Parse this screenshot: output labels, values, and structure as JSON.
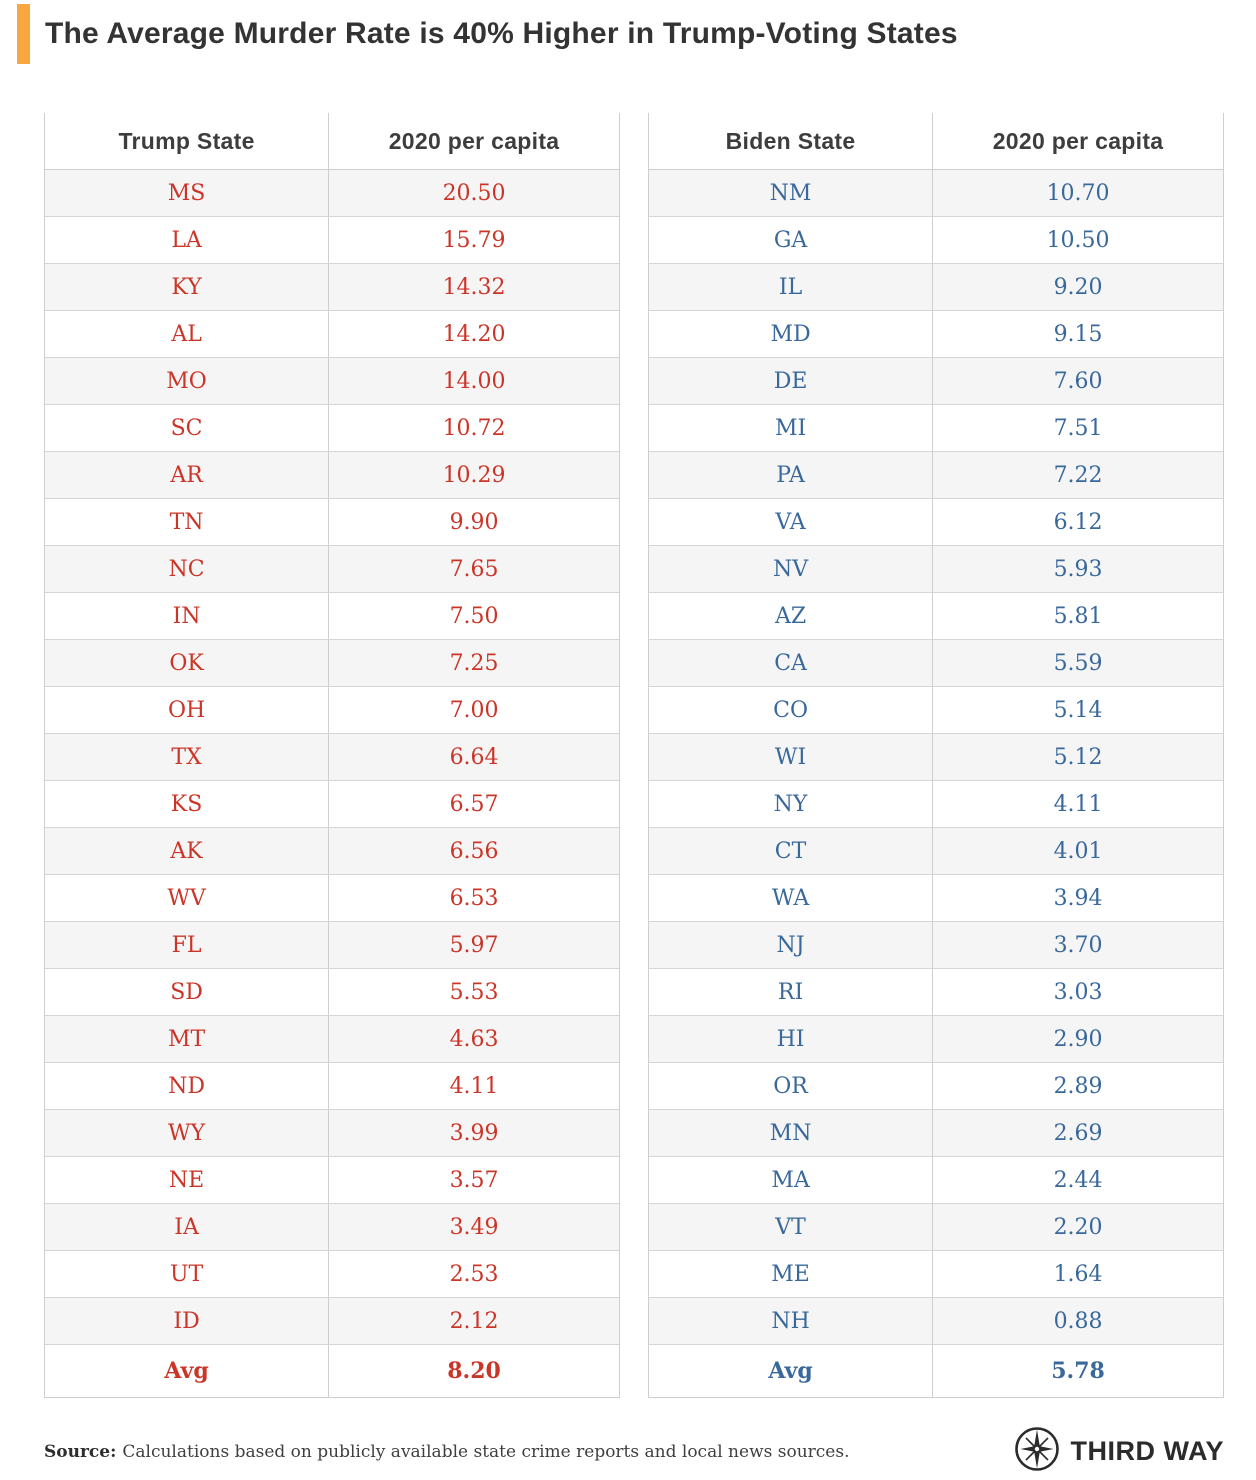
{
  "title": "The Average Murder Rate is 40% Higher in Trump-Voting States",
  "accent_color": "#F8A63F",
  "header_text_color": "#3d3d3d",
  "chart_data": {
    "type": "table",
    "title": "The Average Murder Rate is 40% Higher in Trump-Voting States",
    "tables": [
      {
        "name": "Trump States",
        "text_color": "#cb3528",
        "columns": [
          "Trump State",
          "2020 per capita"
        ],
        "rows": [
          [
            "MS",
            "20.50"
          ],
          [
            "LA",
            "15.79"
          ],
          [
            "KY",
            "14.32"
          ],
          [
            "AL",
            "14.20"
          ],
          [
            "MO",
            "14.00"
          ],
          [
            "SC",
            "10.72"
          ],
          [
            "AR",
            "10.29"
          ],
          [
            "TN",
            "9.90"
          ],
          [
            "NC",
            "7.65"
          ],
          [
            "IN",
            "7.50"
          ],
          [
            "OK",
            "7.25"
          ],
          [
            "OH",
            "7.00"
          ],
          [
            "TX",
            "6.64"
          ],
          [
            "KS",
            "6.57"
          ],
          [
            "AK",
            "6.56"
          ],
          [
            "WV",
            "6.53"
          ],
          [
            "FL",
            "5.97"
          ],
          [
            "SD",
            "5.53"
          ],
          [
            "MT",
            "4.63"
          ],
          [
            "ND",
            "4.11"
          ],
          [
            "WY",
            "3.99"
          ],
          [
            "NE",
            "3.57"
          ],
          [
            "IA",
            "3.49"
          ],
          [
            "UT",
            "2.53"
          ],
          [
            "ID",
            "2.12"
          ]
        ],
        "avg_label": "Avg",
        "avg_value": "8.20"
      },
      {
        "name": "Biden States",
        "text_color": "#39689a",
        "columns": [
          "Biden State",
          "2020 per capita"
        ],
        "rows": [
          [
            "NM",
            "10.70"
          ],
          [
            "GA",
            "10.50"
          ],
          [
            "IL",
            "9.20"
          ],
          [
            "MD",
            "9.15"
          ],
          [
            "DE",
            "7.60"
          ],
          [
            "MI",
            "7.51"
          ],
          [
            "PA",
            "7.22"
          ],
          [
            "VA",
            "6.12"
          ],
          [
            "NV",
            "5.93"
          ],
          [
            "AZ",
            "5.81"
          ],
          [
            "CA",
            "5.59"
          ],
          [
            "CO",
            "5.14"
          ],
          [
            "WI",
            "5.12"
          ],
          [
            "NY",
            "4.11"
          ],
          [
            "CT",
            "4.01"
          ],
          [
            "WA",
            "3.94"
          ],
          [
            "NJ",
            "3.70"
          ],
          [
            "RI",
            "3.03"
          ],
          [
            "HI",
            "2.90"
          ],
          [
            "OR",
            "2.89"
          ],
          [
            "MN",
            "2.69"
          ],
          [
            "MA",
            "2.44"
          ],
          [
            "VT",
            "2.20"
          ],
          [
            "ME",
            "1.64"
          ],
          [
            "NH",
            "0.88"
          ]
        ],
        "avg_label": "Avg",
        "avg_value": "5.78"
      }
    ]
  },
  "footer": {
    "source_label": "Source:",
    "source_text": "Calculations based on publicly available state crime reports and local news sources.",
    "logo_icon": "compass-icon",
    "logo_text": "THIRD WAY"
  }
}
